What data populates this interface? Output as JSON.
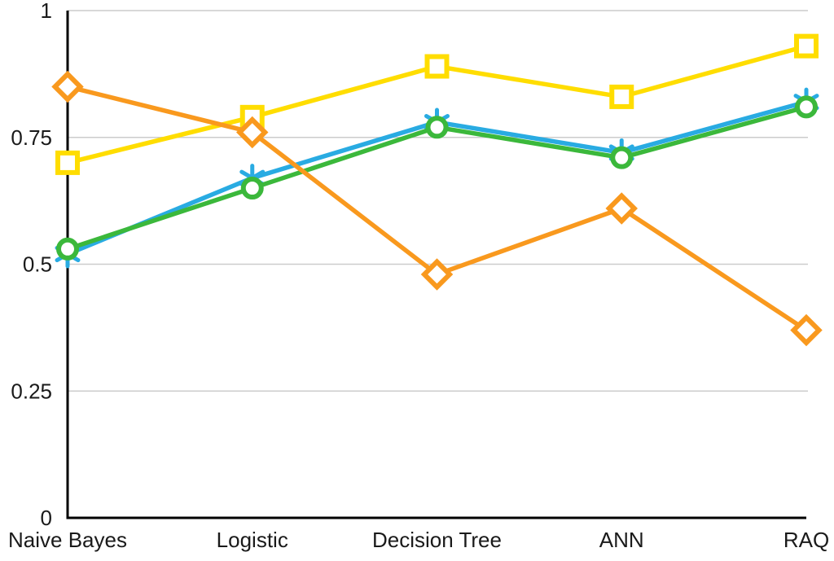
{
  "chart_data": {
    "type": "line",
    "title": "",
    "xlabel": "",
    "ylabel": "",
    "categories": [
      "Naive Bayes",
      "Logistic",
      "Decision Tree",
      "ANN",
      "RAQ"
    ],
    "series": [
      {
        "name": "yellow-square-series",
        "marker": "square",
        "color": "#FFDD00",
        "values": [
          0.7,
          0.79,
          0.89,
          0.83,
          0.93
        ]
      },
      {
        "name": "blue-asterisk-series",
        "marker": "asterisk",
        "color": "#29ABE2",
        "values": [
          0.52,
          0.67,
          0.78,
          0.72,
          0.82
        ]
      },
      {
        "name": "green-circle-series",
        "marker": "circle",
        "color": "#3BB83B",
        "values": [
          0.53,
          0.65,
          0.77,
          0.71,
          0.81
        ]
      },
      {
        "name": "orange-diamond-series",
        "marker": "diamond",
        "color": "#F9991E",
        "values": [
          0.85,
          0.76,
          0.48,
          0.61,
          0.37
        ]
      }
    ],
    "ylim": [
      0,
      1
    ],
    "ytick_labels": [
      "0",
      "0.25",
      "0.5",
      "0.75",
      "1"
    ],
    "grid": true,
    "legend_position": "none",
    "colors": {
      "axis": "#000000",
      "gridline": "#cccccc",
      "tick_label": "#1a1a1a",
      "marker_fill": "#ffffff",
      "background": "#ffffff"
    }
  }
}
